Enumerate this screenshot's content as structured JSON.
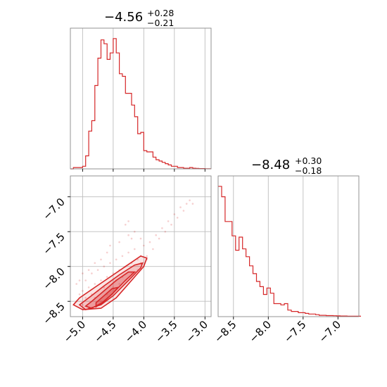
{
  "chart_data": {
    "type": "corner",
    "color": "#d62728",
    "grid": true,
    "panels": [
      {
        "id": "hist-1",
        "type": "histogram",
        "title": {
          "main": "−4.56",
          "upper": "+0.28",
          "lower": "−0.21"
        },
        "xlim": [
          -5.2,
          -2.9
        ],
        "ylim": [
          0,
          1.08
        ],
        "gridlines_x": [
          -5.0,
          -4.5,
          -4.0,
          -3.5,
          -3.0
        ],
        "bins": {
          "edges_start": -5.2,
          "bin_width": 0.05,
          "values": [
            0.0,
            0.01,
            0.01,
            0.01,
            0.02,
            0.1,
            0.29,
            0.37,
            0.64,
            0.85,
            0.99,
            0.96,
            0.84,
            0.89,
            1.0,
            0.89,
            0.73,
            0.71,
            0.58,
            0.58,
            0.49,
            0.4,
            0.27,
            0.28,
            0.14,
            0.13,
            0.13,
            0.09,
            0.07,
            0.06,
            0.05,
            0.04,
            0.03,
            0.02,
            0.02,
            0.01,
            0.01,
            0.005,
            0.005,
            0.01,
            0.005,
            0.003,
            0.002,
            0.002,
            0.001,
            0.001
          ]
        }
      },
      {
        "id": "hist-2",
        "type": "histogram",
        "title": {
          "main": "−8.48",
          "upper": "+0.30",
          "lower": "−0.18"
        },
        "xlim": [
          -8.72,
          -6.7
        ],
        "ylim": [
          0,
          1.08
        ],
        "gridlines_x": [
          -8.5,
          -8.0,
          -7.5,
          -7.0
        ],
        "tick_labels_x": [
          "−8.5",
          "−8.0",
          "−7.5",
          "−7.0"
        ],
        "tick_values_x": [
          -8.5,
          -8.0,
          -7.5,
          -7.0
        ],
        "bins": {
          "edges_start": -8.72,
          "bin_width": 0.05,
          "values": [
            1.0,
            0.92,
            0.73,
            0.73,
            0.62,
            0.51,
            0.61,
            0.52,
            0.46,
            0.39,
            0.33,
            0.27,
            0.23,
            0.17,
            0.22,
            0.18,
            0.1,
            0.1,
            0.09,
            0.1,
            0.05,
            0.04,
            0.04,
            0.03,
            0.03,
            0.025,
            0.02,
            0.02,
            0.015,
            0.01,
            0.01,
            0.008,
            0.008,
            0.007,
            0.006,
            0.005,
            0.005,
            0.004,
            0.004,
            0.003,
            0.003
          ]
        }
      },
      {
        "id": "joint",
        "type": "scatter_contour",
        "xlim": [
          -5.2,
          -2.9
        ],
        "ylim": [
          -8.72,
          -6.7
        ],
        "tick_labels_x": [
          "−5.0",
          "−4.5",
          "−4.0",
          "−3.5",
          "−3.0"
        ],
        "tick_values_x": [
          -5.0,
          -4.5,
          -4.0,
          -3.5,
          -3.0
        ],
        "tick_labels_y": [
          "−7.0",
          "−7.5",
          "−8.0",
          "−8.5"
        ],
        "tick_values_y": [
          -7.0,
          -7.5,
          -8.0,
          -8.5
        ],
        "scatter_points": [
          [
            -4.05,
            -7.85
          ],
          [
            -4.1,
            -7.9
          ],
          [
            -4.2,
            -7.95
          ],
          [
            -4.3,
            -8.0
          ],
          [
            -4.4,
            -8.05
          ],
          [
            -4.5,
            -8.1
          ],
          [
            -4.6,
            -8.15
          ],
          [
            -4.7,
            -8.2
          ],
          [
            -4.8,
            -8.25
          ],
          [
            -4.9,
            -8.3
          ],
          [
            -5.0,
            -8.35
          ],
          [
            -5.05,
            -8.4
          ],
          [
            -4.95,
            -8.2
          ],
          [
            -4.85,
            -8.1
          ],
          [
            -4.75,
            -8.05
          ],
          [
            -4.65,
            -8.0
          ],
          [
            -4.55,
            -7.95
          ],
          [
            -4.45,
            -7.9
          ],
          [
            -4.35,
            -7.85
          ],
          [
            -4.25,
            -7.8
          ],
          [
            -4.15,
            -7.75
          ],
          [
            -4.0,
            -7.7
          ],
          [
            -3.9,
            -7.65
          ],
          [
            -3.8,
            -7.55
          ],
          [
            -3.7,
            -7.45
          ],
          [
            -3.6,
            -7.35
          ],
          [
            -3.5,
            -7.25
          ],
          [
            -3.4,
            -7.15
          ],
          [
            -3.3,
            -7.1
          ],
          [
            -3.25,
            -7.05
          ],
          [
            -4.3,
            -7.4
          ],
          [
            -4.2,
            -7.6
          ],
          [
            -4.6,
            -7.8
          ],
          [
            -4.8,
            -7.95
          ],
          [
            -5.0,
            -8.1
          ],
          [
            -5.1,
            -8.25
          ],
          [
            -5.1,
            -8.5
          ],
          [
            -5.0,
            -8.55
          ],
          [
            -4.9,
            -8.6
          ],
          [
            -4.8,
            -8.45
          ],
          [
            -4.7,
            -8.5
          ],
          [
            -4.6,
            -8.4
          ],
          [
            -4.5,
            -8.3
          ],
          [
            -4.4,
            -8.25
          ],
          [
            -4.3,
            -8.2
          ],
          [
            -4.2,
            -8.1
          ],
          [
            -4.1,
            -8.05
          ],
          [
            -4.0,
            -8.0
          ],
          [
            -3.95,
            -7.9
          ],
          [
            -3.85,
            -7.75
          ],
          [
            -4.7,
            -7.9
          ],
          [
            -4.9,
            -8.05
          ],
          [
            -5.05,
            -8.2
          ],
          [
            -4.55,
            -7.7
          ],
          [
            -4.4,
            -7.65
          ],
          [
            -4.25,
            -7.55
          ],
          [
            -4.15,
            -7.5
          ],
          [
            -3.75,
            -7.6
          ],
          [
            -3.65,
            -7.5
          ],
          [
            -3.55,
            -7.4
          ],
          [
            -3.45,
            -7.3
          ],
          [
            -4.65,
            -8.3
          ],
          [
            -4.75,
            -8.35
          ],
          [
            -4.85,
            -8.4
          ],
          [
            -4.95,
            -8.45
          ],
          [
            -4.35,
            -8.15
          ],
          [
            -4.45,
            -8.2
          ],
          [
            -4.05,
            -7.95
          ],
          [
            -3.95,
            -7.85
          ],
          [
            -4.25,
            -7.35
          ],
          [
            -4.05,
            -7.6
          ],
          [
            -3.35,
            -7.2
          ],
          [
            -3.2,
            -7.1
          ]
        ],
        "contours": [
          [
            [
              -5.0,
              -8.62
            ],
            [
              -4.7,
              -8.6
            ],
            [
              -4.45,
              -8.45
            ],
            [
              -4.2,
              -8.2
            ],
            [
              -4.0,
              -8.0
            ],
            [
              -3.95,
              -7.88
            ],
            [
              -4.05,
              -7.85
            ],
            [
              -4.3,
              -8.0
            ],
            [
              -4.55,
              -8.15
            ],
            [
              -4.8,
              -8.3
            ],
            [
              -5.05,
              -8.45
            ],
            [
              -5.15,
              -8.55
            ]
          ],
          [
            [
              -4.95,
              -8.62
            ],
            [
              -4.7,
              -8.55
            ],
            [
              -4.5,
              -8.42
            ],
            [
              -4.25,
              -8.2
            ],
            [
              -4.05,
              -8.02
            ],
            [
              -4.02,
              -7.95
            ],
            [
              -4.15,
              -7.98
            ],
            [
              -4.4,
              -8.12
            ],
            [
              -4.65,
              -8.28
            ],
            [
              -4.9,
              -8.45
            ],
            [
              -5.05,
              -8.55
            ]
          ],
          [
            [
              -4.85,
              -8.6
            ],
            [
              -4.68,
              -8.52
            ],
            [
              -4.5,
              -8.38
            ],
            [
              -4.3,
              -8.2
            ],
            [
              -4.15,
              -8.08
            ],
            [
              -4.25,
              -8.08
            ],
            [
              -4.45,
              -8.2
            ],
            [
              -4.65,
              -8.35
            ],
            [
              -4.85,
              -8.5
            ],
            [
              -4.95,
              -8.57
            ]
          ],
          [
            [
              -4.78,
              -8.58
            ],
            [
              -4.65,
              -8.5
            ],
            [
              -4.52,
              -8.4
            ],
            [
              -4.42,
              -8.3
            ],
            [
              -4.52,
              -8.32
            ],
            [
              -4.65,
              -8.42
            ],
            [
              -4.78,
              -8.52
            ]
          ]
        ]
      }
    ]
  }
}
